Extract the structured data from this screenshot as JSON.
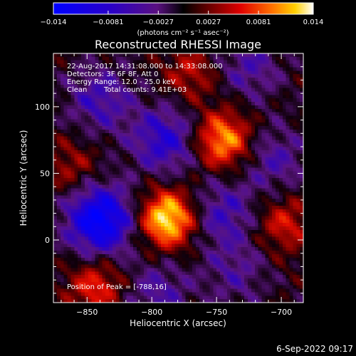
{
  "chart_data": {
    "type": "heatmap",
    "title": "Reconstructed RHESSI Image",
    "xlabel": "Heliocentric X (arcsec)",
    "ylabel": "Heliocentric Y (arcsec)",
    "xlim": [
      -876,
      -683
    ],
    "ylim": [
      -47,
      140
    ],
    "x_ticks": [
      -850,
      -800,
      -750,
      -700
    ],
    "x_tick_labels": [
      "−850",
      "−800",
      "−750",
      "−700"
    ],
    "y_ticks": [
      0,
      50,
      100
    ],
    "y_tick_labels": [
      "0",
      "50",
      "100"
    ],
    "colorbar": {
      "min": -0.014,
      "max": 0.014,
      "ticks": [
        -0.014,
        -0.0081,
        -0.0027,
        0.0027,
        0.0081,
        0.014
      ],
      "tick_labels": [
        "−0.014",
        "−0.0081",
        "−0.0027",
        "0.0027",
        "0.0081",
        "0.014"
      ],
      "unit_label": "(photons cm⁻² s⁻¹ asec⁻²)"
    },
    "annotations": {
      "time_range": "22-Aug-2017 14:31:08.000 to 14:33:08.000",
      "detectors": "Detectors: 3F 6F 8F, Att 0",
      "energy": "Energy Range: 12.0 - 25.0 keV",
      "algorithm": "Clean",
      "counts": "Total counts: 9.41E+03",
      "peak": "Position of Peak = [-788,16]"
    },
    "sources": [
      {
        "x": -788,
        "y": 16,
        "value": 0.014
      },
      {
        "x": -745,
        "y": 75,
        "value": 0.011
      },
      {
        "x": -843,
        "y": -35,
        "value": 0.007
      },
      {
        "x": -698,
        "y": 12,
        "value": 0.006
      },
      {
        "x": -770,
        "y": 125,
        "value": 0.005
      },
      {
        "x": -862,
        "y": 55,
        "value": 0.004
      }
    ],
    "holes": [
      {
        "x": -840,
        "y": 15,
        "value": -0.014
      },
      {
        "x": -790,
        "y": 75,
        "value": -0.008
      },
      {
        "x": -745,
        "y": 20,
        "value": -0.006
      },
      {
        "x": -840,
        "y": 105,
        "value": -0.006
      },
      {
        "x": -725,
        "y": 130,
        "value": -0.005
      },
      {
        "x": -705,
        "y": 60,
        "value": -0.005
      },
      {
        "x": -795,
        "y": -40,
        "value": -0.005
      },
      {
        "x": -735,
        "y": -25,
        "value": -0.004
      }
    ]
  },
  "footer": {
    "timestamp": "6-Sep-2022 09:17"
  }
}
